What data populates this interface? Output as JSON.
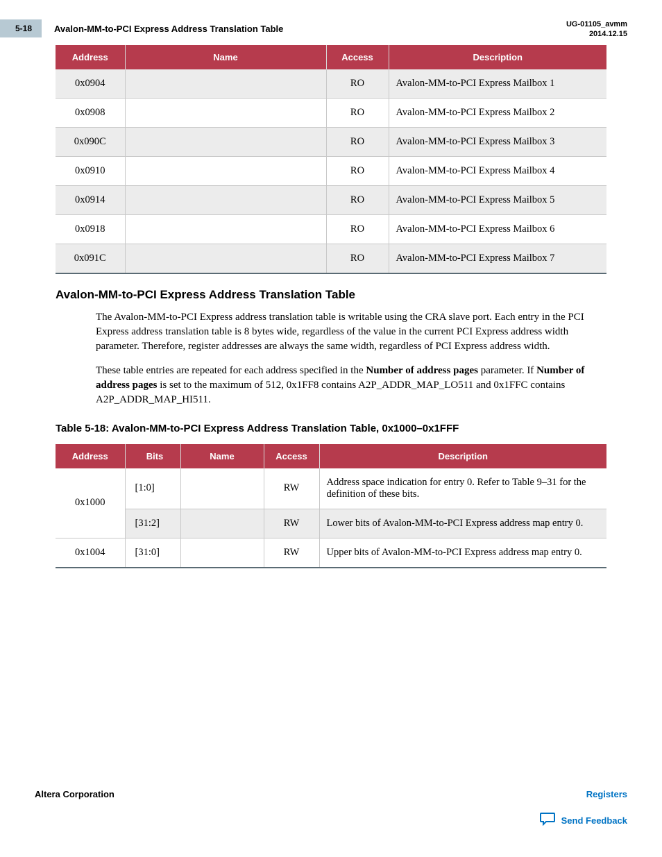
{
  "header": {
    "page_num": "5-18",
    "title": "Avalon-MM-to-PCI Express Address Translation Table",
    "doc_id": "UG-01105_avmm",
    "date": "2014.12.15"
  },
  "table1": {
    "columns": [
      "Address",
      "Name",
      "Access",
      "Description"
    ],
    "rows": [
      [
        "0x0904",
        "",
        "RO",
        "Avalon-MM-to-PCI Express Mailbox 1"
      ],
      [
        "0x0908",
        "",
        "RO",
        "Avalon-MM-to-PCI Express Mailbox 2"
      ],
      [
        "0x090C",
        "",
        "RO",
        "Avalon-MM-to-PCI Express Mailbox 3"
      ],
      [
        "0x0910",
        "",
        "RO",
        "Avalon-MM-to-PCI Express Mailbox 4"
      ],
      [
        "0x0914",
        "",
        "RO",
        "Avalon-MM-to-PCI Express Mailbox 5"
      ],
      [
        "0x0918",
        "",
        "RO",
        "Avalon-MM-to-PCI Express Mailbox 6"
      ],
      [
        "0x091C",
        "",
        "RO",
        "Avalon-MM-to-PCI Express Mailbox 7"
      ]
    ]
  },
  "section": {
    "heading": "Avalon-MM-to-PCI Express Address Translation Table",
    "p1": "The Avalon-MM-to-PCI Express address translation table is writable using the CRA slave port. Each entry in the PCI Express address translation table is 8 bytes wide, regardless of the value in the current PCI Express address width parameter. Therefore, register addresses are always the same width, regardless of PCI Express address width.",
    "p2a": "These table entries are repeated for each address specified in the ",
    "p2b": "Number of address pages",
    "p2c": " parameter. If ",
    "p2d": "Number of address pages",
    "p2e": " is set to the maximum of 512, 0x1FF8 contains A2P_ADDR_MAP_LO511 and 0x1FFC contains A2P_ADDR_MAP_HI511."
  },
  "table2": {
    "caption": "Table 5-18: Avalon-MM-to-PCI Express Address Translation Table, 0x1000–0x1FFF",
    "columns": [
      "Address",
      "Bits",
      "Name",
      "Access",
      "Description"
    ],
    "rows": [
      {
        "addr": "0x1000",
        "addr_rowspan": 2,
        "bits": "[1:0]",
        "name": "",
        "access": "RW",
        "desc": "Address space indication for entry 0. Refer to Table 9–31 for the definition of these bits.",
        "shaded": false
      },
      {
        "bits": "[31:2]",
        "name": "",
        "access": "RW",
        "desc": "Lower bits of Avalon-MM-to-PCI Express address map entry 0.",
        "shaded": true
      },
      {
        "addr": "0x1004",
        "addr_rowspan": 1,
        "bits": "[31:0]",
        "name": "",
        "access": "RW",
        "desc": "Upper bits of Avalon-MM-to-PCI Express address map entry 0.",
        "shaded": false
      }
    ]
  },
  "footer": {
    "company": "Altera Corporation",
    "registers": "Registers",
    "feedback": "Send Feedback"
  },
  "colors": {
    "header_red": "#b63b4d",
    "link_blue": "#0073c4",
    "page_badge": "#b7c9d3"
  }
}
